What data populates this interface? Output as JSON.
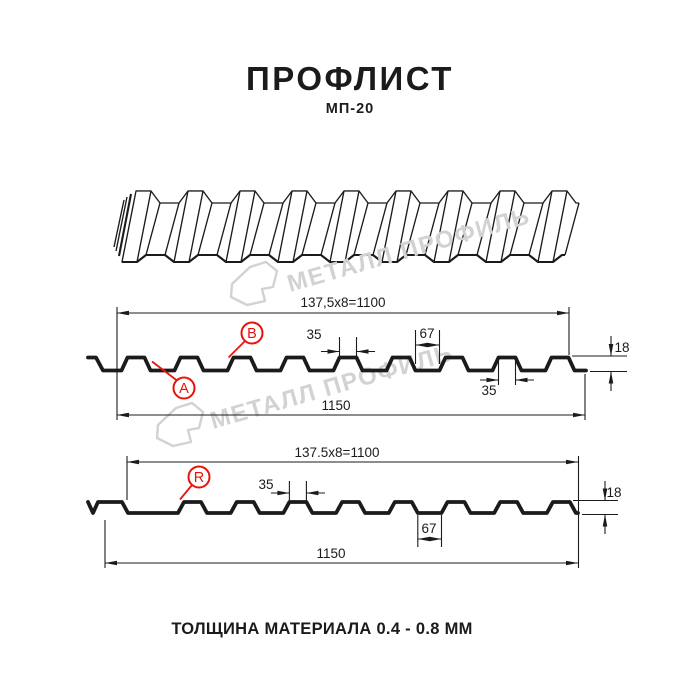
{
  "title": "ПРОФЛИСТ",
  "subtitle": "МП-20",
  "footer": "ТОЛЩИНА МАТЕРИАЛА 0.4 - 0.8 ММ",
  "watermark": {
    "text": "МЕТАЛЛ ПРОФИЛЬ"
  },
  "colors": {
    "line": "#1b1b1b",
    "red": "#e8130c",
    "watermark": "#d2d2d2",
    "background": "#ffffff"
  },
  "section1": {
    "dim_top": "137,5x8=1100",
    "dim_bottom": "1150",
    "dim_crest_top": "35",
    "dim_valley": "67",
    "dim_height": "18",
    "dim_crest_bottom": "35",
    "label_a": "A",
    "label_b": "B"
  },
  "section2": {
    "dim_top": "137.5x8=1100",
    "dim_bottom": "1150",
    "dim_crest_top": "35",
    "dim_valley": "67",
    "dim_height": "18",
    "label_r": "R"
  }
}
